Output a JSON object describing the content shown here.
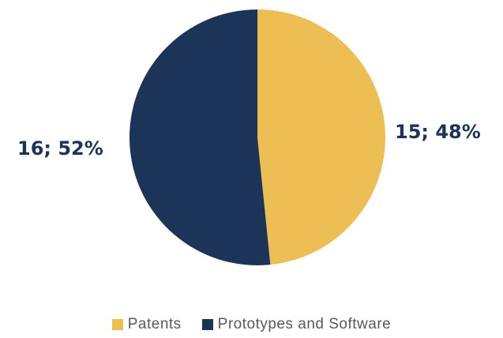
{
  "chart_data": {
    "type": "pie",
    "categories": [
      "Patents",
      "Prototypes and Software"
    ],
    "values": [
      15,
      16
    ],
    "percentages": [
      "48%",
      "52%"
    ],
    "data_labels": [
      "15; 48%",
      "16; 52%"
    ],
    "colors": [
      "#ecbe53",
      "#1b3457"
    ],
    "start_angle": "12 o'clock",
    "direction": "clockwise",
    "legend": {
      "position": "bottom"
    },
    "title": ""
  }
}
